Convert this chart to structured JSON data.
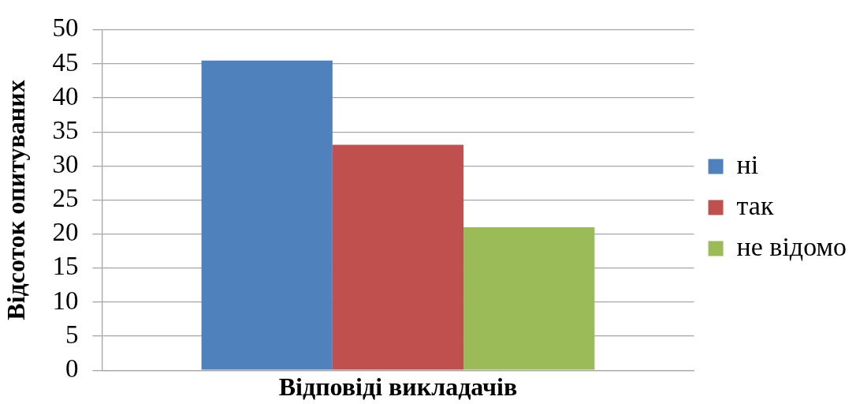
{
  "chart_data": {
    "type": "bar",
    "categories": [
      null
    ],
    "series": [
      {
        "name": "ні",
        "color": "#4f81bd",
        "values": [
          45.5
        ]
      },
      {
        "name": "так",
        "color": "#c0504d",
        "values": [
          33.1
        ]
      },
      {
        "name": "не відомо",
        "color": "#9bbb59",
        "values": [
          21.0
        ]
      }
    ],
    "xlabel": "Відповіді викладачів",
    "ylabel": "Відсоток опитуваних",
    "ylim": [
      0,
      50
    ],
    "yticks": [
      0,
      5,
      10,
      15,
      20,
      25,
      30,
      35,
      40,
      45,
      50
    ],
    "grid": "y",
    "legend": "right"
  }
}
